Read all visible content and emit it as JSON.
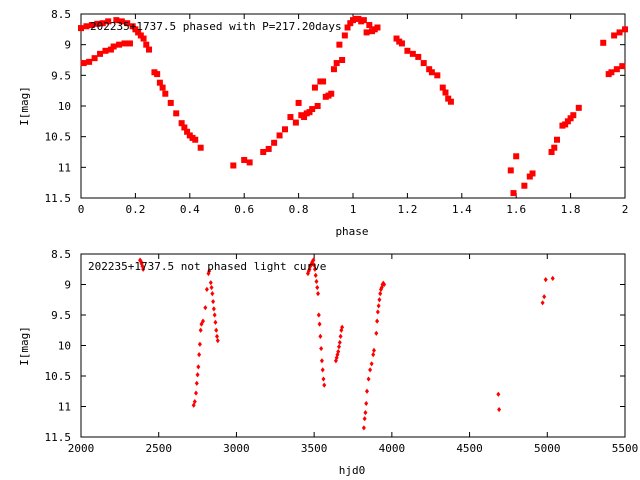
{
  "chart_data": [
    {
      "type": "scatter",
      "title": "202235+1737.5 phased with P=217.20days",
      "xlabel": "phase",
      "ylabel": "I[mag]",
      "xlim": [
        0,
        2
      ],
      "ylim": [
        8.5,
        11.5
      ],
      "y_inverted": true,
      "grid": false,
      "xticks": [
        "0",
        "0.2",
        "0.4",
        "0.6",
        "0.8",
        "1",
        "1.2",
        "1.4",
        "1.6",
        "1.8",
        "2"
      ],
      "yticks": [
        "8.5",
        "9",
        "9.5",
        "10",
        "10.5",
        "11",
        "11.5"
      ],
      "marker_color": "#ff0000",
      "points": [
        [
          0.0,
          8.73
        ],
        [
          0.01,
          9.3
        ],
        [
          0.02,
          8.7
        ],
        [
          0.03,
          9.28
        ],
        [
          0.04,
          8.68
        ],
        [
          0.05,
          9.22
        ],
        [
          0.06,
          8.66
        ],
        [
          0.07,
          9.15
        ],
        [
          0.08,
          8.65
        ],
        [
          0.09,
          9.1
        ],
        [
          0.1,
          8.62
        ],
        [
          0.11,
          9.08
        ],
        [
          0.12,
          9.03
        ],
        [
          0.13,
          8.6
        ],
        [
          0.14,
          9.0
        ],
        [
          0.15,
          8.62
        ],
        [
          0.16,
          8.98
        ],
        [
          0.17,
          8.65
        ],
        [
          0.18,
          8.98
        ],
        [
          0.19,
          8.7
        ],
        [
          0.2,
          8.75
        ],
        [
          0.21,
          8.8
        ],
        [
          0.22,
          8.85
        ],
        [
          0.23,
          8.9
        ],
        [
          0.24,
          9.0
        ],
        [
          0.25,
          9.08
        ],
        [
          0.27,
          9.45
        ],
        [
          0.28,
          9.48
        ],
        [
          0.29,
          9.62
        ],
        [
          0.3,
          9.7
        ],
        [
          0.31,
          9.8
        ],
        [
          0.33,
          9.95
        ],
        [
          0.35,
          10.12
        ],
        [
          0.37,
          10.28
        ],
        [
          0.38,
          10.35
        ],
        [
          0.39,
          10.42
        ],
        [
          0.4,
          10.48
        ],
        [
          0.41,
          10.52
        ],
        [
          0.42,
          10.55
        ],
        [
          0.44,
          10.68
        ],
        [
          0.56,
          10.97
        ],
        [
          0.6,
          10.88
        ],
        [
          0.62,
          10.92
        ],
        [
          0.67,
          10.75
        ],
        [
          0.69,
          10.7
        ],
        [
          0.71,
          10.6
        ],
        [
          0.73,
          10.48
        ],
        [
          0.75,
          10.38
        ],
        [
          0.77,
          10.18
        ],
        [
          0.79,
          10.27
        ],
        [
          0.8,
          9.95
        ],
        [
          0.81,
          10.15
        ],
        [
          0.82,
          10.18
        ],
        [
          0.83,
          10.12
        ],
        [
          0.84,
          10.1
        ],
        [
          0.85,
          10.05
        ],
        [
          0.86,
          9.7
        ],
        [
          0.87,
          10.0
        ],
        [
          0.88,
          9.6
        ],
        [
          0.89,
          9.6
        ],
        [
          0.9,
          9.85
        ],
        [
          0.91,
          9.83
        ],
        [
          0.92,
          9.8
        ],
        [
          0.93,
          9.4
        ],
        [
          0.94,
          9.3
        ],
        [
          0.95,
          9.0
        ],
        [
          0.96,
          9.25
        ],
        [
          0.97,
          8.85
        ],
        [
          0.98,
          8.72
        ],
        [
          0.99,
          8.65
        ],
        [
          1.0,
          8.6
        ],
        [
          1.01,
          8.58
        ],
        [
          1.02,
          8.58
        ],
        [
          1.03,
          8.62
        ],
        [
          1.04,
          8.6
        ],
        [
          1.05,
          8.8
        ],
        [
          1.06,
          8.68
        ],
        [
          1.07,
          8.78
        ],
        [
          1.08,
          8.75
        ],
        [
          1.09,
          8.72
        ],
        [
          1.16,
          8.9
        ],
        [
          1.17,
          8.95
        ],
        [
          1.18,
          8.98
        ],
        [
          1.2,
          9.1
        ],
        [
          1.22,
          9.15
        ],
        [
          1.24,
          9.2
        ],
        [
          1.26,
          9.3
        ],
        [
          1.28,
          9.4
        ],
        [
          1.29,
          9.45
        ],
        [
          1.31,
          9.5
        ],
        [
          1.33,
          9.7
        ],
        [
          1.34,
          9.78
        ],
        [
          1.35,
          9.88
        ],
        [
          1.36,
          9.93
        ],
        [
          1.58,
          11.05
        ],
        [
          1.59,
          11.42
        ],
        [
          1.6,
          10.82
        ],
        [
          1.63,
          11.3
        ],
        [
          1.65,
          11.15
        ],
        [
          1.66,
          11.1
        ],
        [
          1.73,
          10.75
        ],
        [
          1.74,
          10.68
        ],
        [
          1.75,
          10.55
        ],
        [
          1.77,
          10.32
        ],
        [
          1.78,
          10.3
        ],
        [
          1.79,
          10.25
        ],
        [
          1.8,
          10.2
        ],
        [
          1.81,
          10.15
        ],
        [
          1.83,
          10.03
        ],
        [
          1.92,
          8.97
        ],
        [
          1.94,
          9.48
        ],
        [
          1.95,
          9.45
        ],
        [
          1.96,
          8.85
        ],
        [
          1.97,
          9.4
        ],
        [
          1.98,
          8.8
        ],
        [
          1.99,
          9.35
        ],
        [
          2.0,
          8.75
        ]
      ]
    },
    {
      "type": "scatter",
      "title": "202235+1737.5 not phased light curve",
      "xlabel": "hjd0",
      "ylabel": "I[mag]",
      "xlim": [
        2000,
        5500
      ],
      "ylim": [
        8.5,
        11.5
      ],
      "y_inverted": true,
      "grid": false,
      "xticks": [
        "2000",
        "2500",
        "3000",
        "3500",
        "4000",
        "4500",
        "5000",
        "5500"
      ],
      "yticks": [
        "8.5",
        "9",
        "9.5",
        "10",
        "10.5",
        "11",
        "11.5"
      ],
      "marker_color": "#ff0000",
      "points": [
        [
          2380,
          8.6
        ],
        [
          2385,
          8.62
        ],
        [
          2390,
          8.66
        ],
        [
          2395,
          8.7
        ],
        [
          2400,
          8.75
        ],
        [
          2725,
          10.98
        ],
        [
          2732,
          10.92
        ],
        [
          2740,
          10.78
        ],
        [
          2745,
          10.62
        ],
        [
          2750,
          10.48
        ],
        [
          2755,
          10.35
        ],
        [
          2760,
          10.15
        ],
        [
          2765,
          9.98
        ],
        [
          2770,
          9.75
        ],
        [
          2775,
          9.65
        ],
        [
          2785,
          9.6
        ],
        [
          2800,
          9.38
        ],
        [
          2810,
          9.08
        ],
        [
          2820,
          8.82
        ],
        [
          2825,
          8.78
        ],
        [
          2835,
          8.97
        ],
        [
          2840,
          9.05
        ],
        [
          2845,
          9.15
        ],
        [
          2850,
          9.28
        ],
        [
          2855,
          9.4
        ],
        [
          2860,
          9.5
        ],
        [
          2865,
          9.62
        ],
        [
          2870,
          9.75
        ],
        [
          2875,
          9.85
        ],
        [
          2880,
          9.92
        ],
        [
          3460,
          8.82
        ],
        [
          3465,
          8.78
        ],
        [
          3470,
          8.75
        ],
        [
          3475,
          8.7
        ],
        [
          3480,
          8.68
        ],
        [
          3485,
          8.65
        ],
        [
          3490,
          8.62
        ],
        [
          3495,
          8.6
        ],
        [
          3500,
          8.68
        ],
        [
          3505,
          8.75
        ],
        [
          3510,
          8.85
        ],
        [
          3515,
          8.95
        ],
        [
          3520,
          9.05
        ],
        [
          3525,
          9.15
        ],
        [
          3530,
          9.5
        ],
        [
          3535,
          9.65
        ],
        [
          3540,
          9.85
        ],
        [
          3545,
          10.05
        ],
        [
          3550,
          10.25
        ],
        [
          3555,
          10.4
        ],
        [
          3560,
          10.55
        ],
        [
          3565,
          10.65
        ],
        [
          3640,
          10.25
        ],
        [
          3645,
          10.2
        ],
        [
          3650,
          10.15
        ],
        [
          3655,
          10.1
        ],
        [
          3660,
          10.02
        ],
        [
          3665,
          9.95
        ],
        [
          3670,
          9.85
        ],
        [
          3675,
          9.75
        ],
        [
          3680,
          9.7
        ],
        [
          3820,
          11.35
        ],
        [
          3825,
          11.2
        ],
        [
          3830,
          11.1
        ],
        [
          3835,
          10.95
        ],
        [
          3840,
          10.75
        ],
        [
          3850,
          10.55
        ],
        [
          3860,
          10.4
        ],
        [
          3870,
          10.3
        ],
        [
          3880,
          10.15
        ],
        [
          3885,
          10.08
        ],
        [
          3900,
          9.8
        ],
        [
          3905,
          9.6
        ],
        [
          3910,
          9.45
        ],
        [
          3915,
          9.35
        ],
        [
          3920,
          9.25
        ],
        [
          3925,
          9.15
        ],
        [
          3930,
          9.08
        ],
        [
          3935,
          9.05
        ],
        [
          3940,
          9.0
        ],
        [
          3945,
          8.98
        ],
        [
          3950,
          9.0
        ],
        [
          4685,
          10.8
        ],
        [
          4690,
          11.05
        ],
        [
          4970,
          9.3
        ],
        [
          4980,
          9.2
        ],
        [
          4990,
          8.92
        ],
        [
          5035,
          8.9
        ]
      ]
    }
  ]
}
